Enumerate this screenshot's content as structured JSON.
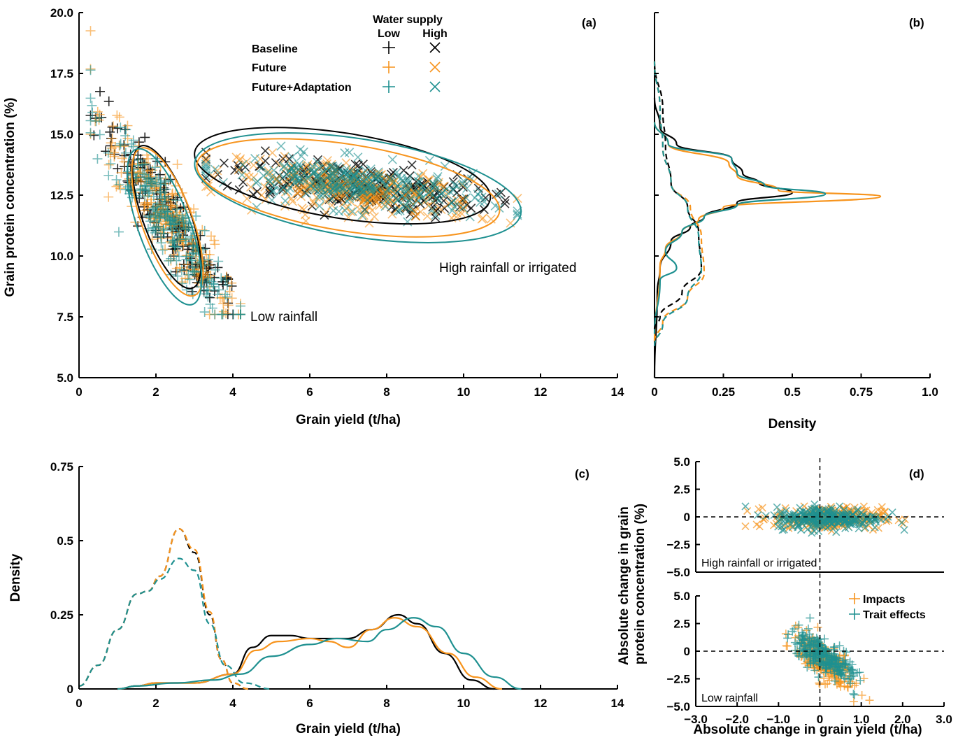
{
  "colors": {
    "baseline": "#000000",
    "future": "#f7941d",
    "adaptation": "#1e9090"
  },
  "legend": {
    "title": "Water supply",
    "low": "Low",
    "high": "High",
    "rows": [
      "Baseline",
      "Future",
      "Future+Adaptation"
    ]
  },
  "chart_data": [
    {
      "panel": "(a)",
      "type": "scatter",
      "xlabel": "Grain yield (t/ha)",
      "ylabel": "Grain protein concentration (%)",
      "xlim": [
        0,
        14
      ],
      "ylim": [
        5.0,
        20.0
      ],
      "xticks": [
        "0",
        "2",
        "4",
        "6",
        "8",
        "10",
        "12",
        "14"
      ],
      "yticks": [
        "5.0",
        "7.5",
        "10.0",
        "12.5",
        "15.0",
        "17.5",
        "20.0"
      ],
      "annotations": [
        "Low rainfall",
        "High rainfall or irrigated"
      ],
      "clusters": [
        {
          "water_supply": "Low",
          "marker": "+",
          "x_range": [
            0.3,
            4.2
          ],
          "y_range": [
            7.5,
            19.8
          ]
        },
        {
          "water_supply": "High",
          "marker": "x",
          "x_range": [
            3.2,
            11.5
          ],
          "y_range": [
            9.0,
            16.0
          ]
        }
      ],
      "ellipses": [
        {
          "series": "Baseline",
          "group": "Low rainfall",
          "center": [
            2.3,
            11.6
          ],
          "semi_major": 5.1,
          "semi_minor": 0.85
        },
        {
          "series": "Future",
          "group": "Low rainfall",
          "center": [
            2.3,
            11.4
          ],
          "semi_major": 5.3,
          "semi_minor": 0.9
        },
        {
          "series": "Future+Adaptation",
          "group": "Low rainfall",
          "center": [
            2.2,
            11.2
          ],
          "semi_major": 5.5,
          "semi_minor": 0.9
        },
        {
          "series": "Baseline",
          "group": "High rainfall or irrigated",
          "center": [
            6.8,
            13.2
          ],
          "semi_major": 3.9,
          "semi_minor": 1.4
        },
        {
          "series": "Future",
          "group": "High rainfall or irrigated",
          "center": [
            7.0,
            12.7
          ],
          "semi_major": 4.0,
          "semi_minor": 1.45
        },
        {
          "series": "Future+Adaptation",
          "group": "High rainfall or irrigated",
          "center": [
            7.2,
            12.8
          ],
          "semi_major": 4.3,
          "semi_minor": 1.6
        }
      ]
    },
    {
      "panel": "(b)",
      "type": "line",
      "xlabel": "Density",
      "ylim": [
        5.0,
        20.0
      ],
      "xlim": [
        0,
        1.0
      ],
      "xticks": [
        "0",
        "0.25",
        "0.5",
        "0.75",
        "1.0"
      ],
      "series": [
        {
          "name": "Baseline",
          "water_supply": "High",
          "style": "solid",
          "points": [
            [
              0,
              5
            ],
            [
              0.01,
              8.5
            ],
            [
              0.02,
              9.5
            ],
            [
              0.06,
              10.6
            ],
            [
              0.13,
              11.2
            ],
            [
              0.18,
              11.6
            ],
            [
              0.3,
              12.2
            ],
            [
              0.5,
              12.6
            ],
            [
              0.38,
              13.0
            ],
            [
              0.32,
              13.4
            ],
            [
              0.28,
              14.0
            ],
            [
              0.08,
              14.6
            ],
            [
              0.02,
              15.3
            ],
            [
              0,
              16.5
            ]
          ]
        },
        {
          "name": "Future",
          "water_supply": "High",
          "style": "solid",
          "points": [
            [
              0,
              6.5
            ],
            [
              0.02,
              9.6
            ],
            [
              0.04,
              10.3
            ],
            [
              0.1,
              11.0
            ],
            [
              0.16,
              11.5
            ],
            [
              0.25,
              12.0
            ],
            [
              0.82,
              12.45
            ],
            [
              0.45,
              12.7
            ],
            [
              0.3,
              13.3
            ],
            [
              0.27,
              13.8
            ],
            [
              0.05,
              14.6
            ],
            [
              0,
              15.5
            ]
          ]
        },
        {
          "name": "Future+Adaptation",
          "water_supply": "High",
          "style": "solid",
          "points": [
            [
              0,
              6.8
            ],
            [
              0.02,
              9.0
            ],
            [
              0.08,
              9.5
            ],
            [
              0.04,
              10.2
            ],
            [
              0.1,
              11.0
            ],
            [
              0.18,
              11.6
            ],
            [
              0.3,
              12.1
            ],
            [
              0.62,
              12.55
            ],
            [
              0.4,
              12.9
            ],
            [
              0.3,
              13.4
            ],
            [
              0.28,
              14.0
            ],
            [
              0.05,
              14.6
            ],
            [
              0,
              15.5
            ]
          ]
        },
        {
          "name": "Baseline",
          "water_supply": "Low",
          "style": "dashed",
          "points": [
            [
              0,
              7.0
            ],
            [
              0.02,
              7.5
            ],
            [
              0.1,
              8.5
            ],
            [
              0.17,
              9.5
            ],
            [
              0.16,
              11.0
            ],
            [
              0.12,
              12.0
            ],
            [
              0.06,
              13.0
            ],
            [
              0.04,
              14.5
            ],
            [
              0.03,
              16.0
            ],
            [
              0,
              18.0
            ]
          ]
        },
        {
          "name": "Future",
          "water_supply": "Low",
          "style": "dashed",
          "points": [
            [
              0,
              6.5
            ],
            [
              0.03,
              7.3
            ],
            [
              0.12,
              8.3
            ],
            [
              0.18,
              9.3
            ],
            [
              0.17,
              10.8
            ],
            [
              0.13,
              12.0
            ],
            [
              0.06,
              13.0
            ],
            [
              0.03,
              14.5
            ],
            [
              0.02,
              16.0
            ],
            [
              0,
              18.0
            ]
          ]
        },
        {
          "name": "Future+Adaptation",
          "water_supply": "Low",
          "style": "dashed",
          "points": [
            [
              0,
              6.3
            ],
            [
              0.03,
              7.2
            ],
            [
              0.12,
              8.3
            ],
            [
              0.17,
              9.4
            ],
            [
              0.16,
              10.8
            ],
            [
              0.12,
              12.0
            ],
            [
              0.06,
              13.0
            ],
            [
              0.03,
              14.5
            ],
            [
              0.02,
              16.0
            ],
            [
              0,
              18.0
            ]
          ]
        }
      ]
    },
    {
      "panel": "(c)",
      "type": "line",
      "xlabel": "Grain yield (t/ha)",
      "ylabel": "Density",
      "xlim": [
        0,
        14
      ],
      "ylim": [
        0,
        0.75
      ],
      "xticks": [
        "0",
        "2",
        "4",
        "6",
        "8",
        "10",
        "12",
        "14"
      ],
      "yticks": [
        "0",
        "0.25",
        "0.5",
        "0.75"
      ],
      "series": [
        {
          "name": "Baseline",
          "water_supply": "Low",
          "style": "dashed",
          "points": [
            [
              0,
              0.01
            ],
            [
              0.5,
              0.08
            ],
            [
              1.0,
              0.2
            ],
            [
              1.5,
              0.32
            ],
            [
              1.8,
              0.33
            ],
            [
              2.1,
              0.38
            ],
            [
              2.6,
              0.54
            ],
            [
              3.0,
              0.46
            ],
            [
              3.4,
              0.25
            ],
            [
              3.7,
              0.1
            ],
            [
              4.0,
              0.02
            ],
            [
              4.4,
              0
            ]
          ]
        },
        {
          "name": "Future",
          "water_supply": "Low",
          "style": "dashed",
          "points": [
            [
              0,
              0.01
            ],
            [
              0.5,
              0.08
            ],
            [
              1.0,
              0.2
            ],
            [
              1.5,
              0.32
            ],
            [
              1.8,
              0.33
            ],
            [
              2.1,
              0.38
            ],
            [
              2.6,
              0.54
            ],
            [
              3.0,
              0.47
            ],
            [
              3.4,
              0.26
            ],
            [
              3.7,
              0.1
            ],
            [
              4.0,
              0.02
            ],
            [
              4.4,
              0
            ]
          ]
        },
        {
          "name": "Future+Adaptation",
          "water_supply": "Low",
          "style": "dashed",
          "points": [
            [
              0,
              0.01
            ],
            [
              0.5,
              0.08
            ],
            [
              1.0,
              0.2
            ],
            [
              1.5,
              0.32
            ],
            [
              1.8,
              0.33
            ],
            [
              2.1,
              0.37
            ],
            [
              2.6,
              0.44
            ],
            [
              3.0,
              0.4
            ],
            [
              3.4,
              0.22
            ],
            [
              3.8,
              0.08
            ],
            [
              4.3,
              0.02
            ],
            [
              5.0,
              0
            ]
          ]
        },
        {
          "name": "Baseline",
          "water_supply": "High",
          "style": "solid",
          "points": [
            [
              1.0,
              0
            ],
            [
              1.5,
              0.01
            ],
            [
              2.0,
              0.02
            ],
            [
              3.0,
              0.02
            ],
            [
              4.0,
              0.05
            ],
            [
              4.5,
              0.14
            ],
            [
              5.0,
              0.18
            ],
            [
              5.5,
              0.18
            ],
            [
              6.0,
              0.17
            ],
            [
              7.0,
              0.17
            ],
            [
              7.6,
              0.2
            ],
            [
              8.3,
              0.25
            ],
            [
              8.8,
              0.22
            ],
            [
              9.5,
              0.12
            ],
            [
              10.2,
              0.03
            ],
            [
              10.8,
              0
            ]
          ]
        },
        {
          "name": "Future",
          "water_supply": "High",
          "style": "solid",
          "points": [
            [
              1.0,
              0
            ],
            [
              1.5,
              0.01
            ],
            [
              2.0,
              0.02
            ],
            [
              3.0,
              0.02
            ],
            [
              4.0,
              0.05
            ],
            [
              4.6,
              0.13
            ],
            [
              5.2,
              0.16
            ],
            [
              6.0,
              0.17
            ],
            [
              6.5,
              0.16
            ],
            [
              7.0,
              0.14
            ],
            [
              7.6,
              0.2
            ],
            [
              8.2,
              0.24
            ],
            [
              8.8,
              0.21
            ],
            [
              9.6,
              0.12
            ],
            [
              10.3,
              0.04
            ],
            [
              11.0,
              0
            ]
          ]
        },
        {
          "name": "Future+Adaptation",
          "water_supply": "High",
          "style": "solid",
          "points": [
            [
              1.0,
              0
            ],
            [
              1.5,
              0.01
            ],
            [
              2.5,
              0.02
            ],
            [
              3.5,
              0.03
            ],
            [
              4.2,
              0.05
            ],
            [
              5.0,
              0.11
            ],
            [
              6.0,
              0.15
            ],
            [
              6.7,
              0.17
            ],
            [
              7.5,
              0.16
            ],
            [
              8.0,
              0.2
            ],
            [
              8.7,
              0.24
            ],
            [
              9.3,
              0.21
            ],
            [
              10.0,
              0.12
            ],
            [
              10.8,
              0.04
            ],
            [
              11.5,
              0
            ]
          ]
        }
      ]
    },
    {
      "panel": "(d)",
      "type": "scatter",
      "xlabel": "Absolute change in grain yield (t/ha)",
      "ylabel": "Absolute change in grain protein concentration (%)",
      "xlim": [
        -3.0,
        3.0
      ],
      "ylim": [
        -5.0,
        5.0
      ],
      "xticks": [
        "−3.0",
        "−2.0",
        "−1.0",
        "0",
        "1.0",
        "2.0",
        "3.0"
      ],
      "yticks": [
        "5.0",
        "2.5",
        "0",
        "−2.5",
        "−5.0"
      ],
      "legend": [
        "Impacts",
        "Trait effects"
      ],
      "subpanels": [
        {
          "label": "High rainfall or irrigated",
          "marker": "x",
          "x_range": [
            -1.8,
            2.2
          ],
          "y_range": [
            -2.0,
            1.8
          ]
        },
        {
          "label": "Low rainfall",
          "marker": "+",
          "x_range": [
            -1.2,
            1.2
          ],
          "y_range": [
            -4.6,
            3.0
          ]
        }
      ]
    }
  ]
}
